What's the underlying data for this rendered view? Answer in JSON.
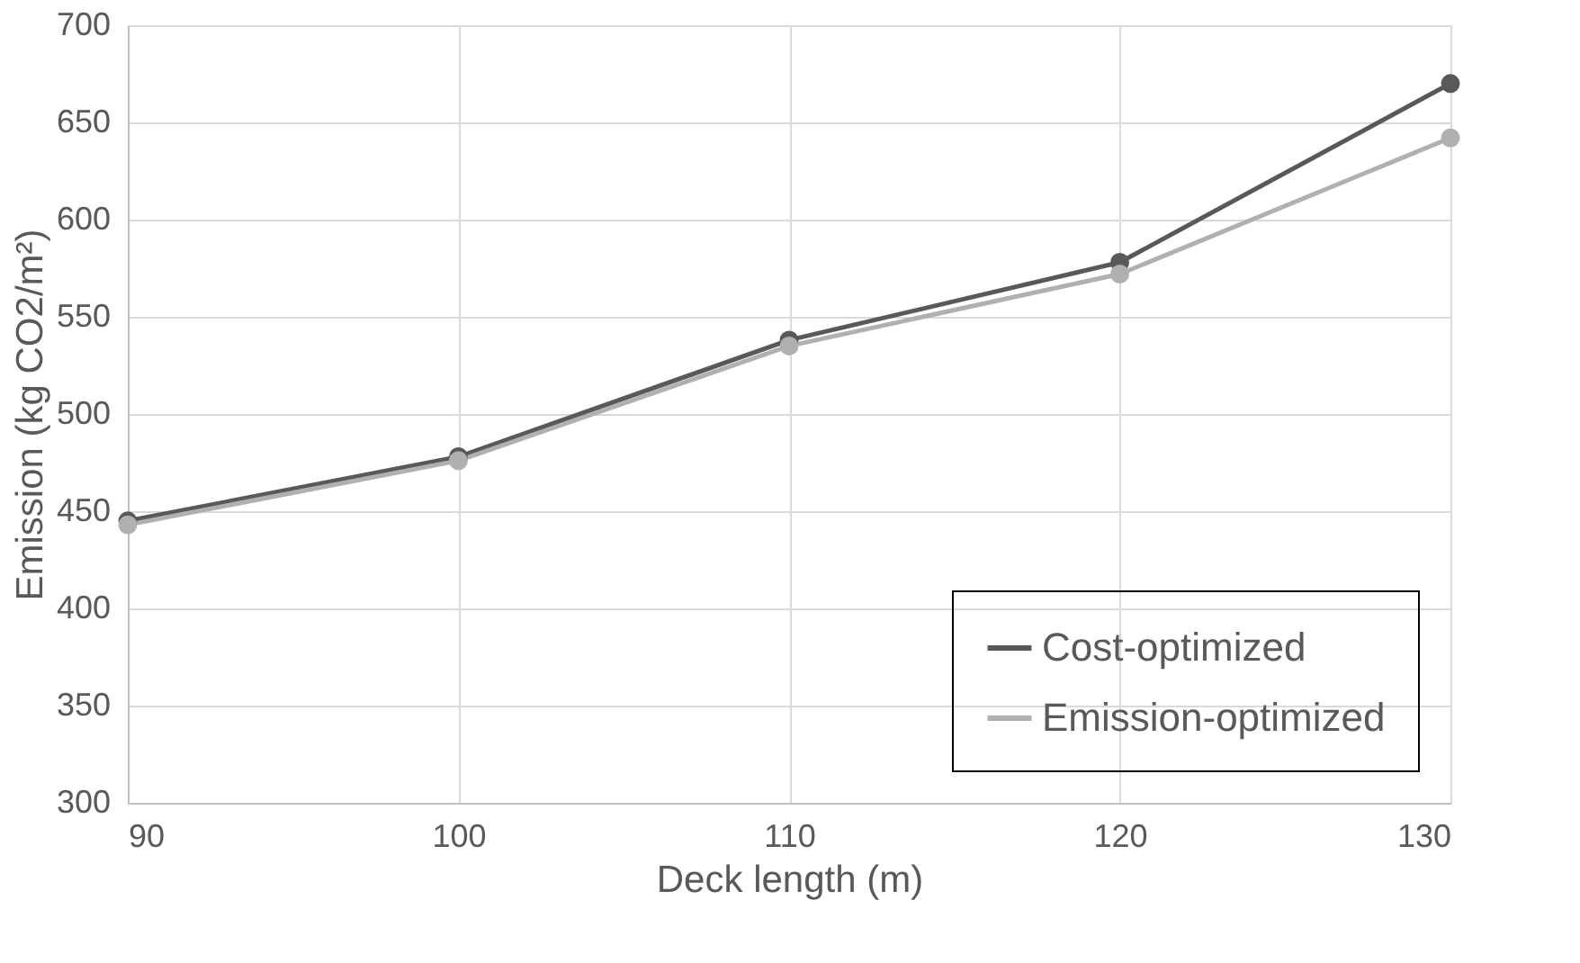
{
  "chart_data": {
    "type": "line",
    "xlabel": "Deck length (m)",
    "ylabel": "Emission (kg CO2/m²)",
    "x": [
      90,
      100,
      110,
      120,
      130
    ],
    "series": [
      {
        "name": "Cost-optimized",
        "color": "#595959",
        "values": [
          445,
          478,
          538,
          578,
          670
        ]
      },
      {
        "name": "Emission-optimized",
        "color": "#b0b0b0",
        "values": [
          443,
          476,
          535,
          572,
          642
        ]
      }
    ],
    "xlim": [
      90,
      130
    ],
    "xticks": [
      90,
      100,
      110,
      120,
      130
    ],
    "ylim": [
      300,
      700
    ],
    "yticks": [
      300,
      350,
      400,
      450,
      500,
      550,
      600,
      650,
      700
    ],
    "grid": true,
    "legend": "bottom right",
    "marker": "circle",
    "line_style": "solid"
  }
}
